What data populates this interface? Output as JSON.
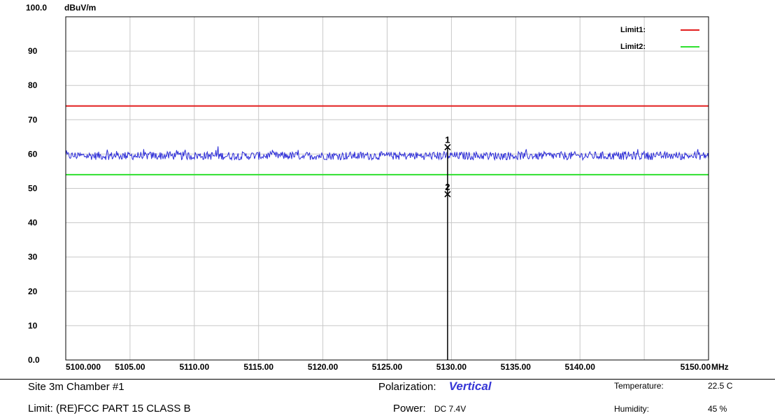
{
  "chart_data": {
    "type": "line",
    "y_top_label": "100.0",
    "y_unit": "dBuV/m",
    "x_unit": "MHz",
    "xlim": [
      5100,
      5150
    ],
    "ylim": [
      0,
      100
    ],
    "x_ticks": [
      {
        "value": 5100,
        "label": "5100.000"
      },
      {
        "value": 5105,
        "label": "5105.00"
      },
      {
        "value": 5110,
        "label": "5110.00"
      },
      {
        "value": 5115,
        "label": "5115.00"
      },
      {
        "value": 5120,
        "label": "5120.00"
      },
      {
        "value": 5125,
        "label": "5125.00"
      },
      {
        "value": 5130,
        "label": "5130.00"
      },
      {
        "value": 5135,
        "label": "5135.00"
      },
      {
        "value": 5140,
        "label": "5140.00"
      },
      {
        "value": 5150,
        "label": "5150.00"
      }
    ],
    "y_ticks": [
      {
        "value": 0,
        "label": "0.0"
      },
      {
        "value": 10,
        "label": "10"
      },
      {
        "value": 20,
        "label": "20"
      },
      {
        "value": 30,
        "label": "30"
      },
      {
        "value": 40,
        "label": "40"
      },
      {
        "value": 50,
        "label": "50"
      },
      {
        "value": 60,
        "label": "60"
      },
      {
        "value": 70,
        "label": "70"
      },
      {
        "value": 80,
        "label": "80"
      },
      {
        "value": 90,
        "label": "90"
      }
    ],
    "grid": true,
    "legend_position": "top-right",
    "limits": [
      {
        "name": "Limit1:",
        "value": 74,
        "color": "#e21d1d"
      },
      {
        "name": "Limit2:",
        "value": 54,
        "color": "#2ee02e"
      }
    ],
    "series": [
      {
        "color": "#2b2bd8",
        "baseline": 59.5,
        "noise": 1.2,
        "x_start": 5100,
        "x_end": 5150,
        "points": 900
      }
    ],
    "markers": [
      {
        "label": "1",
        "x": 5129.7,
        "y": 62.0
      },
      {
        "label": "2",
        "x": 5129.7,
        "y": 48.3
      }
    ],
    "marker_line": {
      "x": 5129.7,
      "from": 0,
      "to": 62.0,
      "color": "#000000"
    }
  },
  "footer": {
    "site_label": "Site",
    "site_value": "3m Chamber #1",
    "limit_label": "Limit:",
    "limit_value": "(RE)FCC PART 15 CLASS B",
    "polarization_label": "Polarization:",
    "polarization_value": "Vertical",
    "power_label": "Power:",
    "power_value": "DC 7.4V",
    "temperature_label": "Temperature:",
    "temperature_value": "22.5 C",
    "humidity_label": "Humidity:",
    "humidity_value": "45 %"
  }
}
